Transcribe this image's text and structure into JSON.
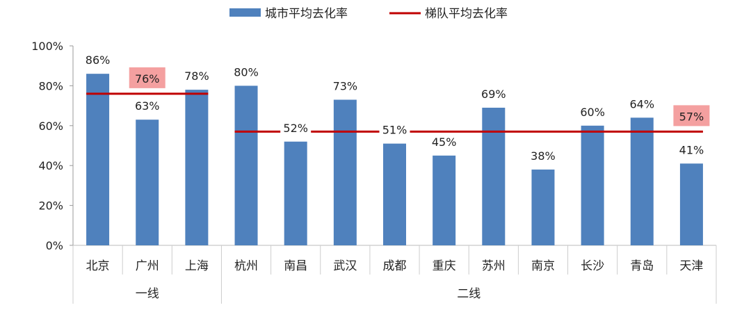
{
  "chart_data": {
    "type": "bar",
    "title": "",
    "xlabel": "",
    "ylabel": "",
    "ylim": [
      0,
      100
    ],
    "y_ticks": [
      "0%",
      "20%",
      "40%",
      "60%",
      "80%",
      "100%"
    ],
    "categories": [
      "北京",
      "广州",
      "上海",
      "杭州",
      "南昌",
      "武汉",
      "成都",
      "重庆",
      "苏州",
      "南京",
      "长沙",
      "青岛",
      "天津"
    ],
    "groups": [
      {
        "label": "一线",
        "count": 3,
        "average": 76,
        "average_label": "76%",
        "label_at": 1
      },
      {
        "label": "二线",
        "count": 10,
        "average": 57,
        "average_label": "57%",
        "label_at": 9
      }
    ],
    "series": [
      {
        "name": "城市平均去化率",
        "type": "bar",
        "color": "#4f81bd",
        "values": [
          86,
          63,
          78,
          80,
          52,
          73,
          51,
          45,
          69,
          38,
          60,
          64,
          41
        ],
        "labels": [
          "86%",
          "63%",
          "78%",
          "80%",
          "52%",
          "73%",
          "51%",
          "45%",
          "69%",
          "38%",
          "60%",
          "64%",
          "41%"
        ]
      },
      {
        "name": "梯队平均去化率",
        "type": "line",
        "color": "#c00000"
      }
    ],
    "highlight_color": "#f4a0a0",
    "legend": "top-center",
    "grid": false
  }
}
